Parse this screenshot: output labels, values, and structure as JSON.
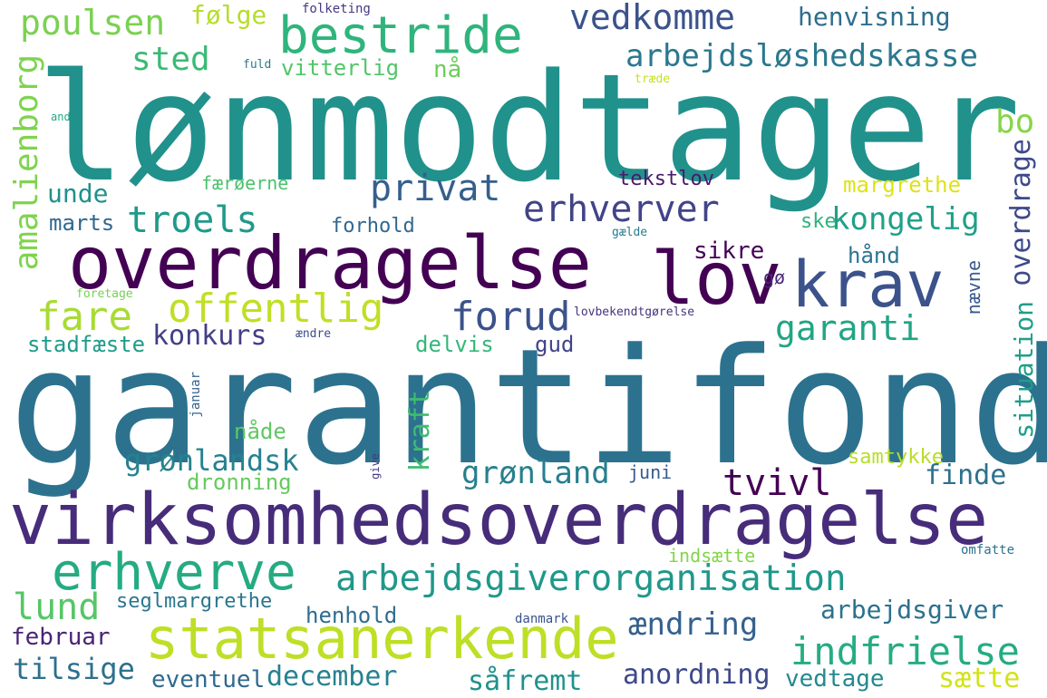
{
  "words": [
    {
      "text": "lønmodtager",
      "color": "#21918c"
    },
    {
      "text": "garantifond",
      "color": "#2c728e"
    },
    {
      "text": "virksomhedsoverdragelse",
      "color": "#472c7a"
    },
    {
      "text": "overdragelse",
      "color": "#440154"
    },
    {
      "text": "statsanerkende",
      "color": "#bddf26"
    },
    {
      "text": "krav",
      "color": "#3b528b"
    },
    {
      "text": "lov",
      "color": "#440154"
    },
    {
      "text": "bestride",
      "color": "#2fb47c"
    },
    {
      "text": "erhverve",
      "color": "#25ab82"
    },
    {
      "text": "arbejdsgiverorganisation",
      "color": "#1f988b"
    },
    {
      "text": "vedkomme",
      "color": "#3b528b"
    },
    {
      "text": "poulsen",
      "color": "#7ad151"
    },
    {
      "text": "følge",
      "color": "#b5de2b"
    },
    {
      "text": "folketing",
      "color": "#443983"
    },
    {
      "text": "henvisning",
      "color": "#2e6e8e"
    },
    {
      "text": "arbejdsløshedskasse",
      "color": "#2a788e"
    },
    {
      "text": "sted",
      "color": "#3aba76"
    },
    {
      "text": "vitterlig",
      "color": "#52c569"
    },
    {
      "text": "nå",
      "color": "#6ccd5a"
    },
    {
      "text": "fuld",
      "color": "#2a788e"
    },
    {
      "text": "træde",
      "color": "#c8e020"
    },
    {
      "text": "and",
      "color": "#22a785"
    },
    {
      "text": "bo",
      "color": "#86d549"
    },
    {
      "text": "amalienborg",
      "color": "#7fd34e"
    },
    {
      "text": "overdrage",
      "color": "#3e4989"
    },
    {
      "text": "privat",
      "color": "#355f8d"
    },
    {
      "text": "tekstlov",
      "color": "#481a6c"
    },
    {
      "text": "færøerne",
      "color": "#4ac16d"
    },
    {
      "text": "margrethe",
      "color": "#dde318"
    },
    {
      "text": "unde",
      "color": "#21908d"
    },
    {
      "text": "erhverver",
      "color": "#414487"
    },
    {
      "text": "troels",
      "color": "#1f9a8a"
    },
    {
      "text": "kongelig",
      "color": "#1fa088"
    },
    {
      "text": "marts",
      "color": "#31678e"
    },
    {
      "text": "forhold",
      "color": "#31688e"
    },
    {
      "text": "ske",
      "color": "#2eb37c"
    },
    {
      "text": "gælde",
      "color": "#287c8e"
    },
    {
      "text": "sikre",
      "color": "#440154"
    },
    {
      "text": "hånd",
      "color": "#2b758e"
    },
    {
      "text": "foretage",
      "color": "#75d054"
    },
    {
      "text": "fare",
      "color": "#a8db34"
    },
    {
      "text": "offentlig",
      "color": "#c0df25"
    },
    {
      "text": "forud",
      "color": "#3b528b"
    },
    {
      "text": "gø",
      "color": "#482878"
    },
    {
      "text": "lovbekendtgørelse",
      "color": "#46337e"
    },
    {
      "text": "nævne",
      "color": "#38588c"
    },
    {
      "text": "konkurs",
      "color": "#433e85"
    },
    {
      "text": "garanti",
      "color": "#21a585"
    },
    {
      "text": "stadfæste",
      "color": "#1e9c89"
    },
    {
      "text": "ændre",
      "color": "#3d4d8a"
    },
    {
      "text": "delvis",
      "color": "#35b779"
    },
    {
      "text": "gud",
      "color": "#414487"
    },
    {
      "text": "situation",
      "color": "#1f9e89"
    },
    {
      "text": "januar",
      "color": "#32648e"
    },
    {
      "text": "kraft",
      "color": "#3fbc73"
    },
    {
      "text": "nåde",
      "color": "#5ec962"
    },
    {
      "text": "grønlandsk",
      "color": "#26828e"
    },
    {
      "text": "give",
      "color": "#453882"
    },
    {
      "text": "grønland",
      "color": "#277f8e"
    },
    {
      "text": "juni",
      "color": "#365c8d"
    },
    {
      "text": "tvivl",
      "color": "#440154"
    },
    {
      "text": "samtykke",
      "color": "#b8de29"
    },
    {
      "text": "finde",
      "color": "#2d718e"
    },
    {
      "text": "dronning",
      "color": "#65cb5e"
    },
    {
      "text": "indsætte",
      "color": "#84d44b"
    },
    {
      "text": "omfatte",
      "color": "#2c728e"
    },
    {
      "text": "lund",
      "color": "#56c667"
    },
    {
      "text": "seglmargrethe",
      "color": "#2a768e"
    },
    {
      "text": "henhold",
      "color": "#2f6c8e"
    },
    {
      "text": "danmark",
      "color": "#3a538b"
    },
    {
      "text": "ændring",
      "color": "#34618d"
    },
    {
      "text": "arbejdsgiver",
      "color": "#2c718e"
    },
    {
      "text": "februar",
      "color": "#482475"
    },
    {
      "text": "indfrielse",
      "color": "#25ac82"
    },
    {
      "text": "tilsige",
      "color": "#2d708e"
    },
    {
      "text": "eventuel",
      "color": "#30698e"
    },
    {
      "text": "december",
      "color": "#26828e"
    },
    {
      "text": "såfremt",
      "color": "#21918c"
    },
    {
      "text": "anordning",
      "color": "#3e4989"
    },
    {
      "text": "vedtage",
      "color": "#23898e"
    },
    {
      "text": "sætte",
      "color": "#d2e21b"
    }
  ]
}
